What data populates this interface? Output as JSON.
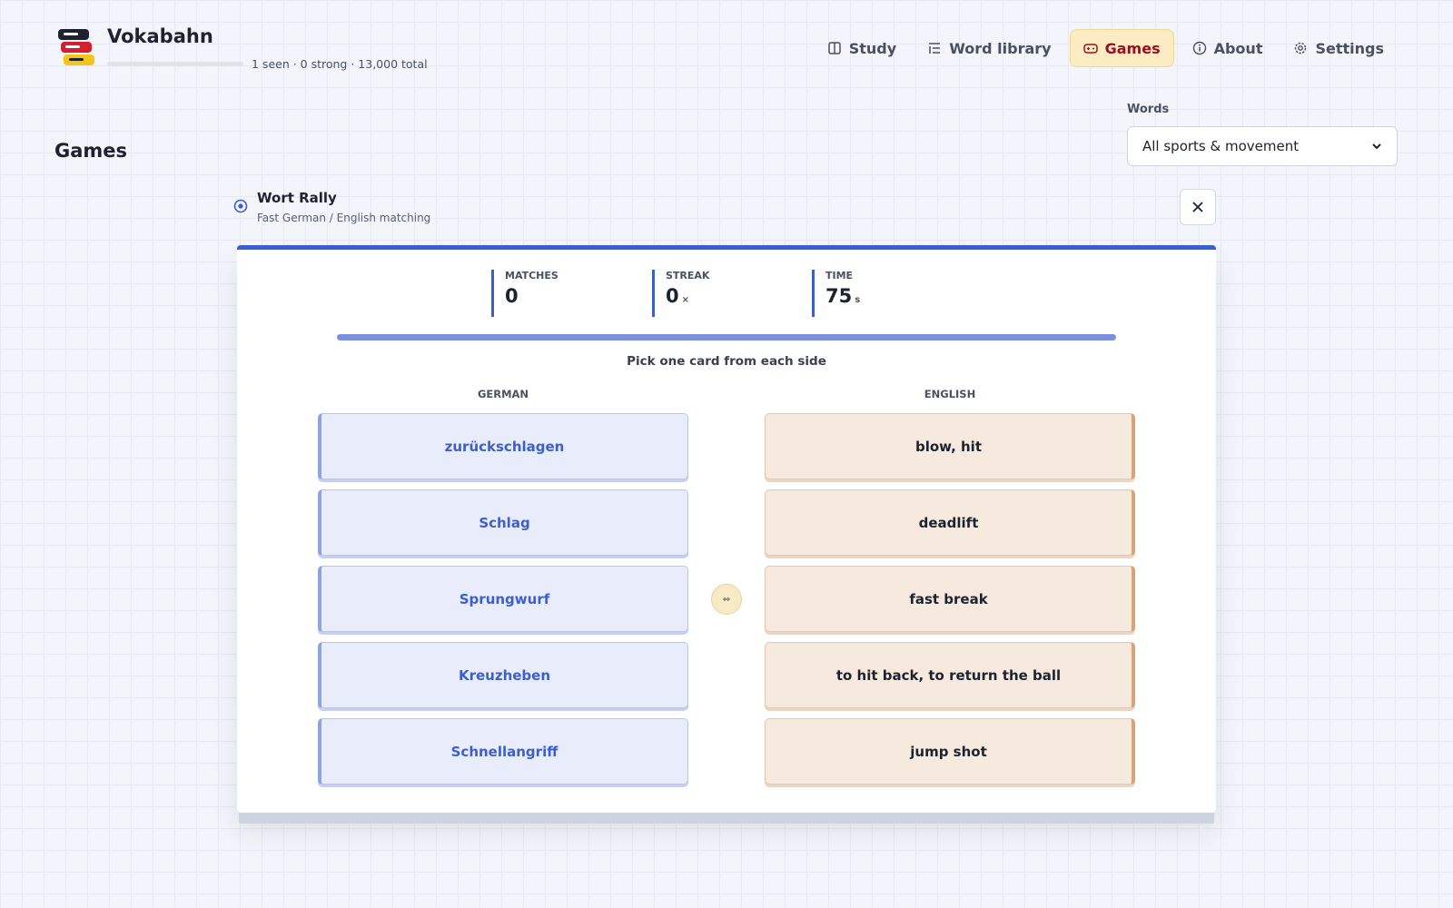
{
  "header": {
    "brand": "Vokabahn",
    "progress": "1 seen · 0 strong · 13,000 total"
  },
  "nav": [
    {
      "label": "Study",
      "active": false
    },
    {
      "label": "Word library",
      "active": false
    },
    {
      "label": "Games",
      "active": true
    },
    {
      "label": "About",
      "active": false
    },
    {
      "label": "Settings",
      "active": false
    }
  ],
  "page_title": "Games",
  "filter": {
    "label": "Words",
    "value": "All sports & movement"
  },
  "game": {
    "title": "Wort Rally",
    "subtitle": "Fast German / English matching"
  },
  "stats": [
    {
      "label": "MATCHES",
      "value": 0
    },
    {
      "label": "STREAK",
      "value": 0,
      "unit": "×"
    },
    {
      "label": "TIME",
      "value": 75,
      "unit": "s"
    }
  ],
  "instruction": "Pick one card from each side",
  "columns": [
    {
      "heading": "GERMAN",
      "cards": [
        "zurückschlagen",
        "Schlag",
        "Sprungwurf",
        "Kreuzheben",
        "Schnellangriff"
      ]
    },
    {
      "heading": "ENGLISH",
      "cards": [
        "blow, hit",
        "deadlift",
        "fast break",
        "to hit back, to return the ball",
        "jump shot"
      ]
    }
  ]
}
